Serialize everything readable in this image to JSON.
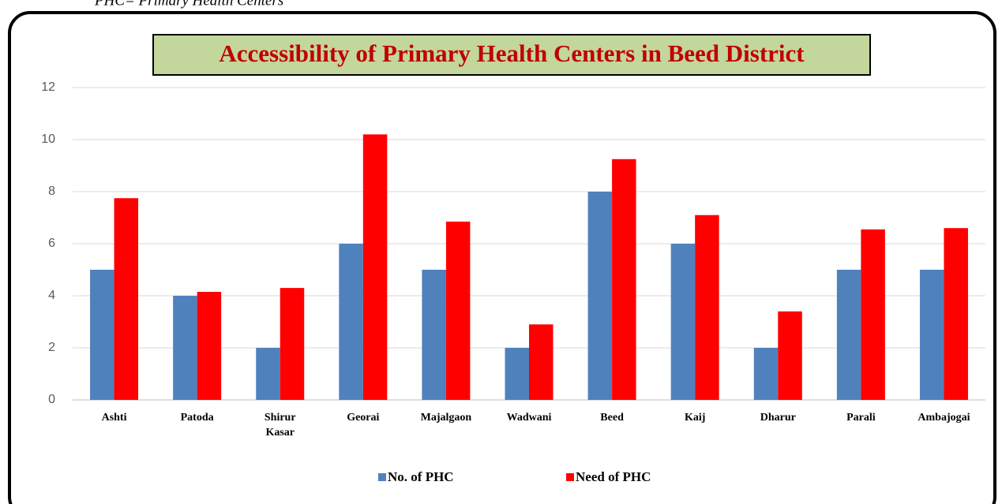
{
  "caption": "PHC= Primary Health Centers",
  "chart_data": {
    "type": "bar",
    "title": "Accessibility of Primary Health Centers in Beed District",
    "categories": [
      "Ashti",
      "Patoda",
      "Shirur Kasar",
      "Georai",
      "Majalgaon",
      "Wadwani",
      "Beed",
      "Kaij",
      "Dharur",
      "Parali",
      "Ambajogai"
    ],
    "series": [
      {
        "name": "No. of PHC",
        "color": "#4f81bd",
        "values": [
          5,
          4,
          2,
          6,
          5,
          2,
          8,
          6,
          2,
          5,
          5
        ]
      },
      {
        "name": "Need of PHC",
        "color": "#ff0000",
        "values": [
          7.75,
          4.15,
          4.3,
          10.2,
          6.85,
          2.9,
          9.25,
          7.1,
          3.4,
          6.55,
          6.6
        ]
      }
    ],
    "ylim": [
      0,
      12
    ],
    "yticks": [
      0,
      2,
      4,
      6,
      8,
      10,
      12
    ],
    "grid": true,
    "legend": "bottom"
  }
}
